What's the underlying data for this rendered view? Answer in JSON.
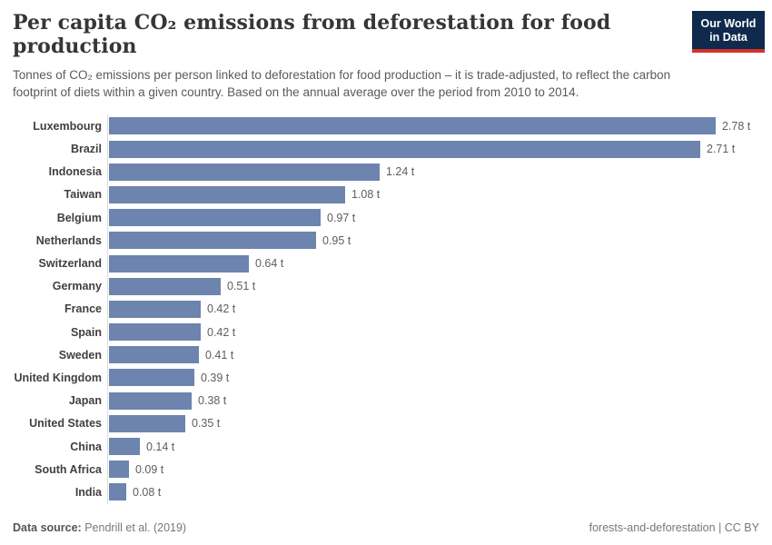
{
  "header": {
    "title": "Per capita CO₂ emissions from deforestation for food production",
    "subtitle": "Tonnes of CO₂ emissions per person linked to deforestation for food production – it is trade-adjusted, to reflect the carbon footprint of diets within a given country. Based on the annual average over the period from 2010 to 2014.",
    "logo": {
      "line1": "Our World",
      "line2": "in Data",
      "background": "#0f2a4d",
      "accent": "#d0342c"
    }
  },
  "chart_data": {
    "type": "bar",
    "orientation": "horizontal",
    "title": "Per capita CO₂ emissions from deforestation for food production",
    "unit": "t",
    "xlim": [
      0,
      2.78
    ],
    "grid": false,
    "bar_color": "#6c84ae",
    "axis_line_color": "#dddddd",
    "categories": [
      "Luxembourg",
      "Brazil",
      "Indonesia",
      "Taiwan",
      "Belgium",
      "Netherlands",
      "Switzerland",
      "Germany",
      "France",
      "Spain",
      "Sweden",
      "United Kingdom",
      "Japan",
      "United States",
      "China",
      "South Africa",
      "India"
    ],
    "values": [
      2.78,
      2.71,
      1.24,
      1.08,
      0.97,
      0.95,
      0.64,
      0.51,
      0.42,
      0.42,
      0.41,
      0.39,
      0.38,
      0.35,
      0.14,
      0.09,
      0.08
    ],
    "value_labels": [
      "2.78 t",
      "2.71 t",
      "1.24 t",
      "1.08 t",
      "0.97 t",
      "0.95 t",
      "0.64 t",
      "0.51 t",
      "0.42 t",
      "0.42 t",
      "0.41 t",
      "0.39 t",
      "0.38 t",
      "0.35 t",
      "0.14 t",
      "0.09 t",
      "0.08 t"
    ]
  },
  "footer": {
    "data_source_label": "Data source:",
    "data_source_value": "Pendrill et al. (2019)",
    "right_text": "forests-and-deforestation | CC BY"
  }
}
